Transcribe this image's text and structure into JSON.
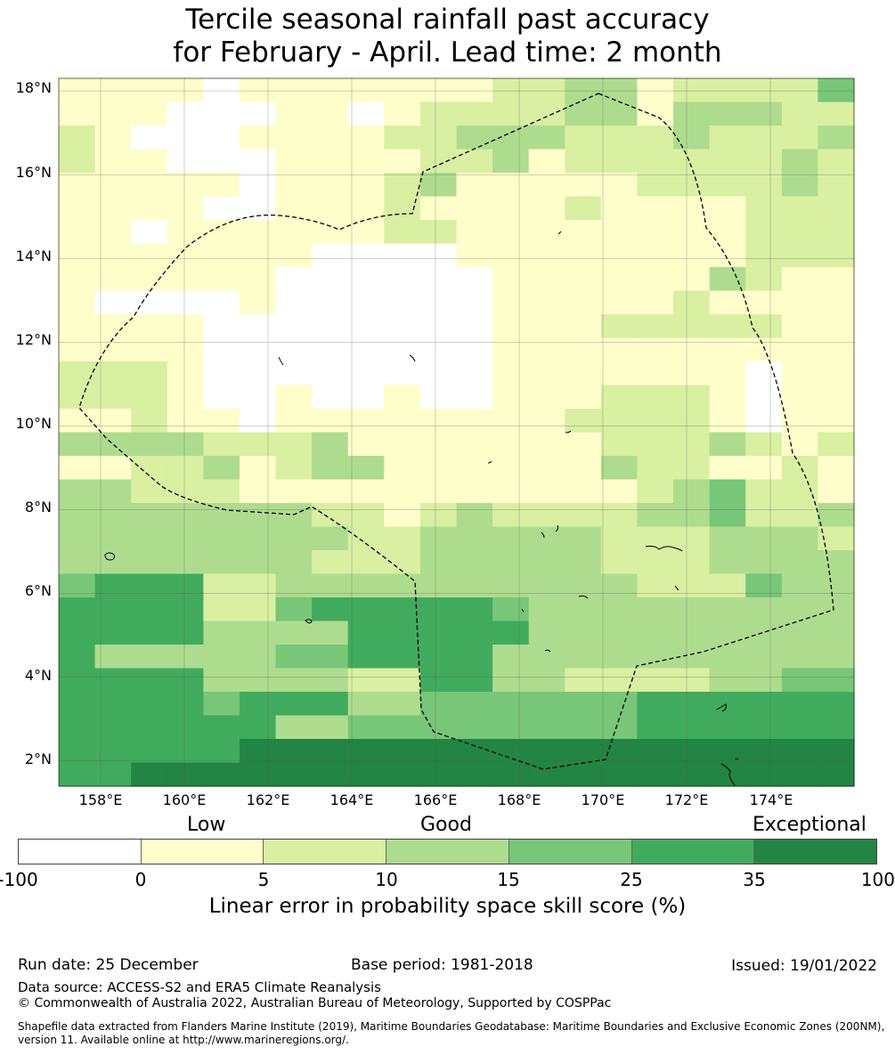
{
  "title": {
    "line1": "Tercile seasonal rainfall past accuracy",
    "line2": "for February - April. Lead time: 2 month"
  },
  "map": {
    "lat_labels": [
      "18°N",
      "16°N",
      "14°N",
      "12°N",
      "10°N",
      "8°N",
      "6°N",
      "4°N",
      "2°N"
    ],
    "lon_labels": [
      "158°E",
      "160°E",
      "162°E",
      "164°E",
      "166°E",
      "168°E",
      "170°E",
      "172°E",
      "174°E"
    ],
    "lat_range": [
      1.4,
      18.3
    ],
    "lon_range": [
      157.0,
      176.0
    ],
    "cell_size_deg": 0.833,
    "region": "Marshall Islands EEZ (dashed boundary)",
    "grid_rows_north_to_south": [
      "1111011111112233122224",
      "1110001101222233133322",
      "2100011112233322232223",
      "2110001111223122222232",
      "1111101112311111222232",
      "1111001112111121111222",
      "1101111112211111111222",
      "1111111000011111111222",
      "1111110000001111113211",
      "1000010000001111121111",
      "1111000000001112222211",
      "1111000000001111111111",
      "2221000000001111111011",
      "2221001001001112221011",
      "1121101111111122221011",
      "3333222311111112223212",
      "1122312331111113221121",
      "3322211111111111234221",
      "3333333221232222334223",
      "3333333322333332223332",
      "3333333222333332223333",
      "4555223333333333222433",
      "5555224555554333333333",
      "5555333355555333333333",
      "5333334455553333333333",
      "5555333322553322223344",
      "5555455533444444555555",
      "5555553344444444555555",
      "5555566666666666666666",
      "5566666666666666666666"
    ]
  },
  "categories": {
    "low": "Low",
    "good": "Good",
    "exceptional": "Exceptional"
  },
  "colorbar": {
    "bins": [
      "-100 to 0",
      "0 to 5",
      "5 to 10",
      "10 to 15",
      "15 to 25",
      "25 to 35",
      "35 to 100"
    ],
    "colors": [
      "#ffffff",
      "#fefecb",
      "#d9efa2",
      "#aedc8e",
      "#78c678",
      "#41ab5d",
      "#238543"
    ],
    "ticks": [
      "-100",
      "0",
      "5",
      "10",
      "15",
      "25",
      "35",
      "100"
    ],
    "label": "Linear error in probability space skill score (%)"
  },
  "footer": {
    "run_date": "Run date: 25 December",
    "base_period": "Base period: 1981-2018",
    "issued": "Issued: 19/01/2022",
    "data_source": "Data source: ACCESS-S2 and ERA5 Climate Reanalysis",
    "copyright": "© Commonwealth of Australia 2022, Australian Bureau of Meteorology, Supported by COSPPac",
    "shapefile": "Shapefile data extracted from Flanders Marine Institute (2019), Maritime Boundaries Geodatabase: Maritime Boundaries and Exclusive Economic Zones (200NM), version 11. Available online at http://www.marineregions.org/."
  }
}
